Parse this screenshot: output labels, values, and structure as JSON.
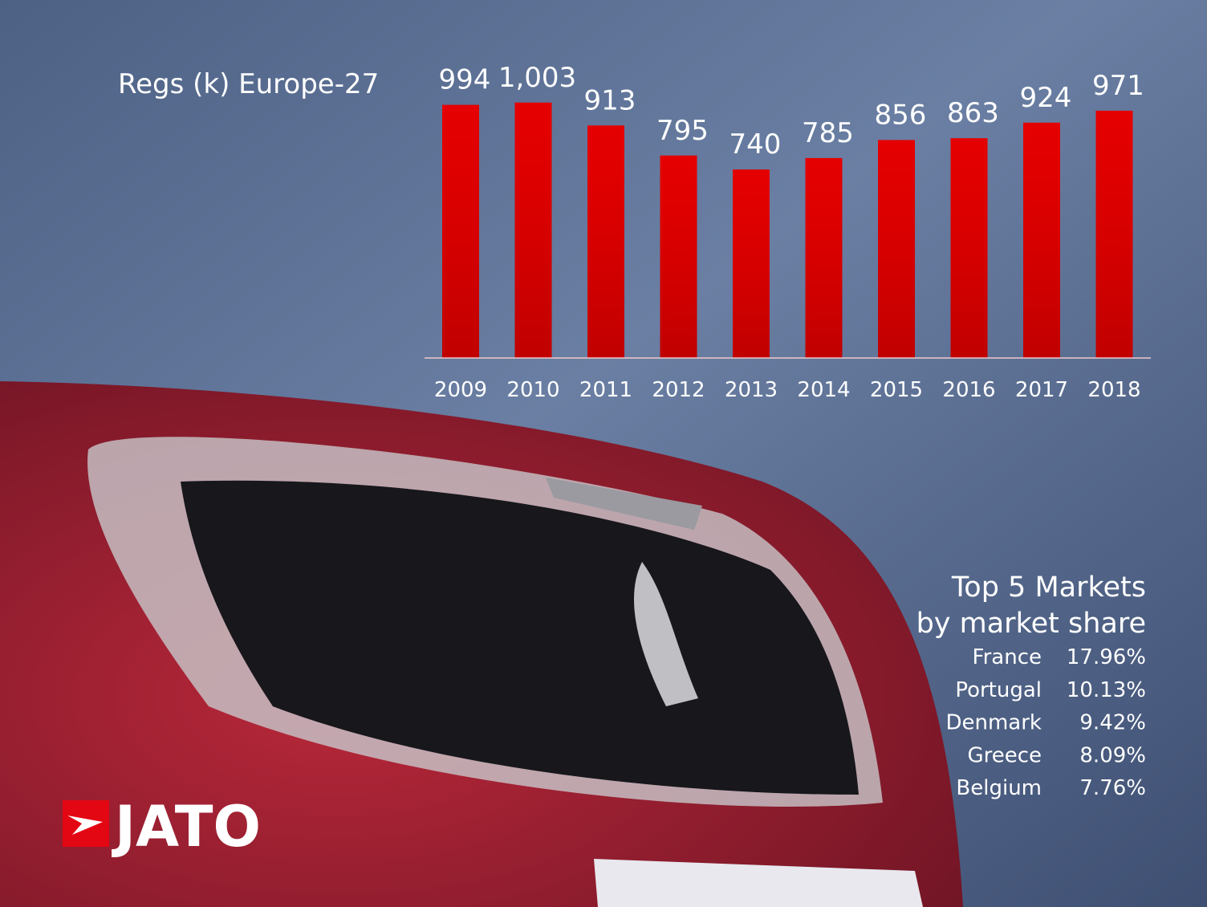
{
  "chart_data": {
    "type": "bar",
    "title": "Regs (k) Europe-27",
    "categories": [
      "2009",
      "2010",
      "2011",
      "2012",
      "2013",
      "2014",
      "2015",
      "2016",
      "2017",
      "2018"
    ],
    "values": [
      994,
      1003,
      913,
      795,
      740,
      785,
      856,
      863,
      924,
      971
    ],
    "value_labels": [
      "994",
      "1,003",
      "913",
      "795",
      "740",
      "785",
      "856",
      "863",
      "924",
      "971"
    ],
    "color": "#e00000",
    "ylim": [
      0,
      1100
    ]
  },
  "top_markets": {
    "title": [
      "Top 5 Markets",
      "by market share"
    ],
    "rows": [
      [
        "France",
        "17.96%"
      ],
      [
        "Portugal",
        "10.13%"
      ],
      [
        "Denmark",
        "9.42%"
      ],
      [
        "Greece",
        "8.09%"
      ],
      [
        "Belgium",
        "7.76%"
      ]
    ]
  },
  "logo": "JATO"
}
